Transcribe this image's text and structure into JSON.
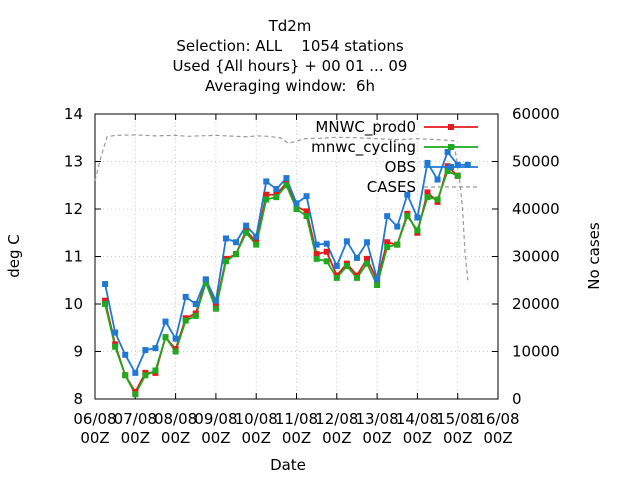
{
  "chart_data": {
    "type": "line",
    "title_lines": [
      "Td2m",
      "Selection: ALL    1054 stations",
      "Used {All hours} + 00 01 ... 09",
      "Averaging window:  6h"
    ],
    "xlabel": "Date",
    "ylabel": "deg C",
    "y2label": "No cases",
    "xlim": [
      0,
      10
    ],
    "ylim": [
      8,
      14
    ],
    "y2lim": [
      0,
      60000
    ],
    "x_ticks": [
      {
        "x": 0,
        "l1": "06/08",
        "l2": "00Z"
      },
      {
        "x": 1,
        "l1": "07/08",
        "l2": "00Z"
      },
      {
        "x": 2,
        "l1": "08/08",
        "l2": "00Z"
      },
      {
        "x": 3,
        "l1": "09/08",
        "l2": "00Z"
      },
      {
        "x": 4,
        "l1": "10/08",
        "l2": "00Z"
      },
      {
        "x": 5,
        "l1": "11/08",
        "l2": "00Z"
      },
      {
        "x": 6,
        "l1": "12/08",
        "l2": "00Z"
      },
      {
        "x": 7,
        "l1": "13/08",
        "l2": "00Z"
      },
      {
        "x": 8,
        "l1": "14/08",
        "l2": "00Z"
      },
      {
        "x": 9,
        "l1": "15/08",
        "l2": "00Z"
      },
      {
        "x": 10,
        "l1": "16/08",
        "l2": "00Z"
      }
    ],
    "y_ticks": [
      "8",
      "9",
      "10",
      "11",
      "12",
      "13",
      "14"
    ],
    "y2_ticks": [
      "0",
      "10000",
      "20000",
      "30000",
      "40000",
      "50000",
      "60000"
    ],
    "grid": true,
    "legend_position": "top-right",
    "x": [
      0.25,
      0.5,
      0.75,
      1.0,
      1.25,
      1.5,
      1.75,
      2.0,
      2.25,
      2.5,
      2.75,
      3.0,
      3.25,
      3.5,
      3.75,
      4.0,
      4.25,
      4.5,
      4.75,
      5.0,
      5.25,
      5.5,
      5.75,
      6.0,
      6.25,
      6.5,
      6.75,
      7.0,
      7.25,
      7.5,
      7.75,
      8.0,
      8.25,
      8.5,
      8.75,
      9.0,
      9.25
    ],
    "series": [
      {
        "name": "MNWC_prod0",
        "color": "#e41a1c",
        "marker": "square",
        "values": [
          10.07,
          9.15,
          8.5,
          8.15,
          8.55,
          8.55,
          9.3,
          9.05,
          9.7,
          9.8,
          10.5,
          9.95,
          10.95,
          11.05,
          11.55,
          11.3,
          12.3,
          12.3,
          12.55,
          12.05,
          11.95,
          11.05,
          11.1,
          10.6,
          10.85,
          10.6,
          10.95,
          10.5,
          11.3,
          11.25,
          11.9,
          11.5,
          12.35,
          12.15,
          12.9,
          12.7,
          null
        ]
      },
      {
        "name": "mnwc_cycling",
        "color": "#1eaa1e",
        "marker": "square",
        "values": [
          10.0,
          9.1,
          8.5,
          8.1,
          8.5,
          8.6,
          9.3,
          9.0,
          9.65,
          9.75,
          10.45,
          9.9,
          10.9,
          11.05,
          11.5,
          11.25,
          12.2,
          12.25,
          12.5,
          12.0,
          11.85,
          10.95,
          10.9,
          10.55,
          10.8,
          10.55,
          10.85,
          10.4,
          11.2,
          11.25,
          11.85,
          11.55,
          12.25,
          12.2,
          12.8,
          12.7,
          null
        ]
      },
      {
        "name": "OBS",
        "color": "#1f78d4",
        "marker": "square",
        "values": [
          10.42,
          9.4,
          8.93,
          8.55,
          9.03,
          9.07,
          9.63,
          9.27,
          10.15,
          10.0,
          10.52,
          10.07,
          11.38,
          11.3,
          11.65,
          11.42,
          12.58,
          12.42,
          12.65,
          12.12,
          12.27,
          11.25,
          11.27,
          10.8,
          11.32,
          10.97,
          11.3,
          10.53,
          11.85,
          11.63,
          12.3,
          11.82,
          12.97,
          12.62,
          13.2,
          12.93,
          12.93
        ]
      }
    ],
    "cases_series": {
      "name": "CASES",
      "color": "#999999",
      "style": "dashed",
      "x": [
        0.0,
        0.15,
        0.3,
        0.5,
        1.0,
        1.5,
        2.0,
        2.3,
        2.6,
        3.0,
        3.5,
        3.8,
        4.0,
        4.3,
        4.6,
        4.8,
        5.2,
        5.6,
        6.0,
        6.5,
        7.0,
        7.5,
        8.0,
        8.5,
        8.9,
        9.05,
        9.12,
        9.18,
        9.25
      ],
      "values": [
        46000,
        51000,
        55200,
        55500,
        55600,
        55400,
        55500,
        55300,
        55400,
        55500,
        55300,
        55200,
        55400,
        55300,
        55000,
        53800,
        54800,
        54900,
        55100,
        55000,
        54800,
        54600,
        54800,
        54600,
        54400,
        46000,
        40000,
        31000,
        25000
      ]
    }
  }
}
